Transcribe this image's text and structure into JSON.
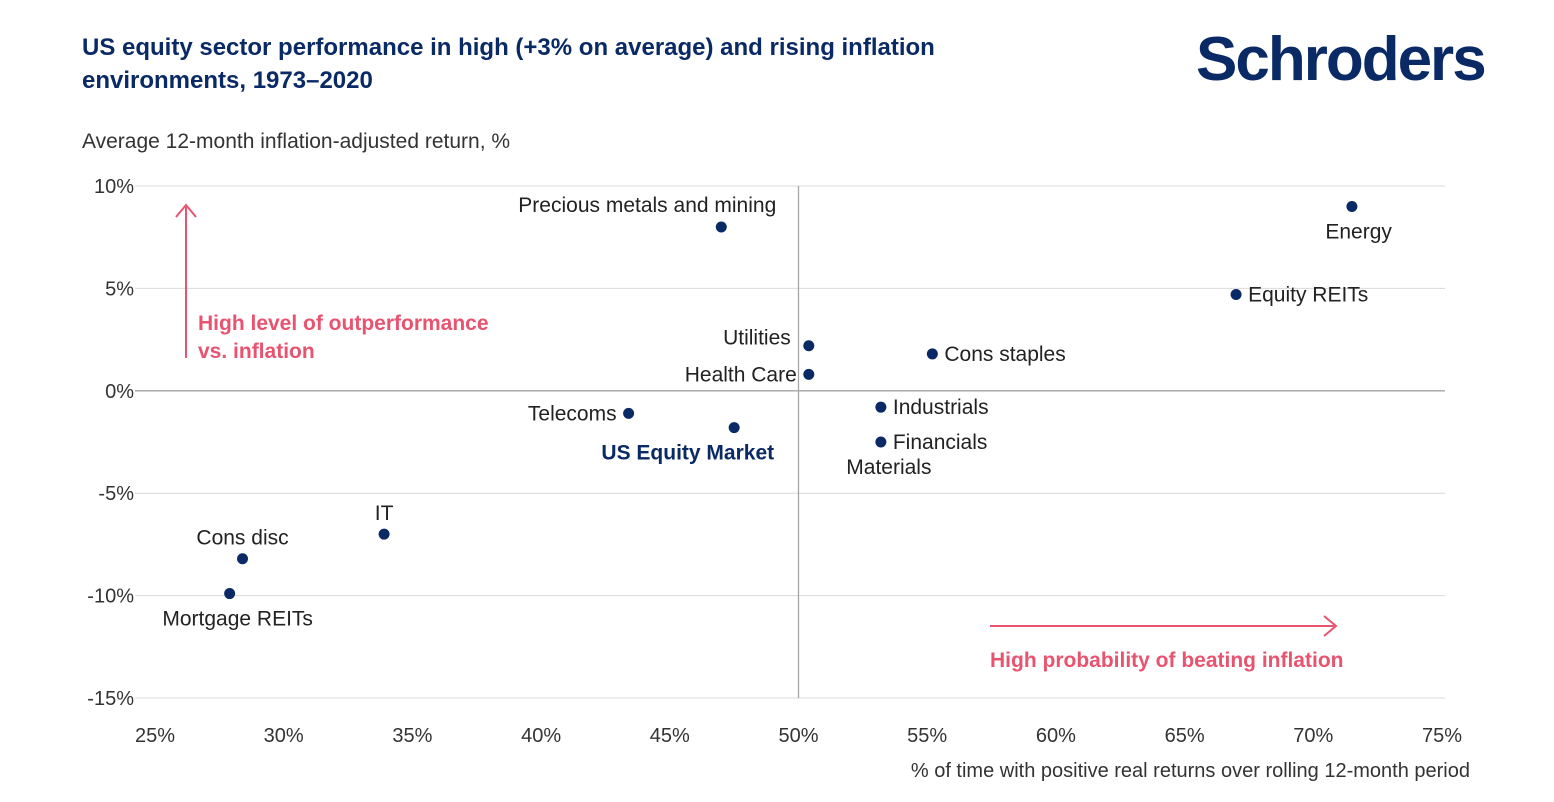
{
  "logo": "Schroders",
  "chart_data": {
    "type": "scatter",
    "title": "US equity sector performance in high (+3% on average) and rising inflation environments, 1973–2020",
    "xlabel": "% of time with positive real returns over rolling 12-month period",
    "ylabel": "Average 12-month inflation-adjusted return, %",
    "xlim": [
      25,
      75
    ],
    "ylim": [
      -15,
      10
    ],
    "x_ticks": [
      25,
      30,
      35,
      40,
      45,
      50,
      55,
      60,
      65,
      70,
      75
    ],
    "x_tick_labels": [
      "25%",
      "30%",
      "35%",
      "40%",
      "45%",
      "50%",
      "55%",
      "60%",
      "65%",
      "70%",
      "75%"
    ],
    "y_ticks": [
      10,
      5,
      0,
      -5,
      -10,
      -15
    ],
    "y_tick_labels": [
      "10%",
      "5%",
      "0%",
      "-5%",
      "-10%",
      "-15%"
    ],
    "grid": true,
    "reference_lines": {
      "x": 50,
      "y": 0
    },
    "points": [
      {
        "label": "Energy",
        "x": 71.5,
        "y": 9.0,
        "label_pos": "below-left"
      },
      {
        "label": "Precious metals and mining",
        "x": 47.0,
        "y": 8.0,
        "label_pos": "above-left"
      },
      {
        "label": "Equity REITs",
        "x": 67.0,
        "y": 4.7,
        "label_pos": "right"
      },
      {
        "label": "Utilities",
        "x": 50.4,
        "y": 2.2,
        "label_pos": "left-up"
      },
      {
        "label": "Cons staples",
        "x": 55.2,
        "y": 1.8,
        "label_pos": "right"
      },
      {
        "label": "Health Care",
        "x": 50.4,
        "y": 0.8,
        "label_pos": "left"
      },
      {
        "label": "Industrials",
        "x": 53.2,
        "y": -0.8,
        "label_pos": "right"
      },
      {
        "label": "Telecoms",
        "x": 43.4,
        "y": -1.1,
        "label_pos": "left"
      },
      {
        "label": "US Equity Market",
        "x": 47.5,
        "y": -1.8,
        "label_pos": "below-left",
        "highlight": true
      },
      {
        "label": "Financials",
        "x": 53.2,
        "y": -2.5,
        "label_pos": "right"
      },
      {
        "label": "Materials",
        "x": 53.2,
        "y": -2.5,
        "label_pos": "below"
      },
      {
        "label": "IT",
        "x": 33.9,
        "y": -7.0,
        "label_pos": "above"
      },
      {
        "label": "Cons disc",
        "x": 28.4,
        "y": -8.2,
        "label_pos": "above"
      },
      {
        "label": "Mortgage REITs",
        "x": 27.9,
        "y": -9.9,
        "label_pos": "below"
      }
    ],
    "annotations": [
      {
        "text_lines": [
          "High level of outperformance",
          "vs. inflation"
        ],
        "arrow": "up",
        "color": "#e8536f"
      },
      {
        "text_lines": [
          "High probability of beating inflation"
        ],
        "arrow": "right",
        "color": "#e8536f"
      }
    ],
    "colors": {
      "point": "#0a2a66",
      "highlight_label": "#0a2a66",
      "annotation": "#e8536f",
      "grid": "#d9d9d9"
    }
  }
}
